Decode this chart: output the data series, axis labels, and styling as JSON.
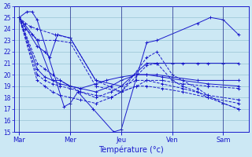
{
  "xlabel": "Température (°c)",
  "day_labels": [
    "Mar",
    "Mer",
    "Jeu",
    "Ven",
    "Sam"
  ],
  "ylim": [
    15,
    26
  ],
  "yticks": [
    15,
    16,
    17,
    18,
    19,
    20,
    21,
    22,
    23,
    24,
    25,
    26
  ],
  "bg_color": "#cce8f4",
  "line_color": "#1a1acc",
  "grid_color": "#88bbcc",
  "day_x": [
    0.0,
    1.0,
    2.0,
    3.0,
    4.0
  ],
  "x_max": 4.5,
  "x_min": -0.1,
  "lines": [
    {
      "y": [
        25.0,
        25.5,
        25.5,
        24.8,
        17.2,
        17.5,
        18.5,
        17.0,
        15.0,
        15.2,
        22.8,
        23.0,
        24.5,
        25.0,
        24.8,
        23.5
      ],
      "x": [
        0.0,
        0.15,
        0.25,
        0.35,
        0.88,
        1.0,
        1.15,
        1.45,
        1.85,
        2.0,
        2.5,
        2.7,
        3.5,
        3.75,
        4.0,
        4.3
      ],
      "dash": false
    },
    {
      "y": [
        25.0,
        22.5,
        22.0,
        21.5,
        23.5,
        23.2,
        19.5,
        19.0,
        21.0,
        21.0,
        21.0,
        21.0,
        21.0,
        21.0,
        21.0,
        21.0
      ],
      "x": [
        0.0,
        0.35,
        0.5,
        0.6,
        0.75,
        1.0,
        1.5,
        2.0,
        2.5,
        2.7,
        3.0,
        3.2,
        3.5,
        3.7,
        4.0,
        4.3
      ],
      "dash": false
    },
    {
      "y": [
        25.0,
        23.0,
        19.5,
        19.5,
        19.0,
        18.8,
        19.2,
        19.5,
        19.8,
        20.0,
        20.0,
        20.0,
        19.8,
        19.5,
        19.5,
        19.5
      ],
      "x": [
        0.0,
        0.35,
        0.65,
        0.8,
        1.0,
        1.2,
        1.5,
        1.7,
        2.0,
        2.3,
        2.5,
        2.7,
        3.0,
        3.5,
        4.0,
        4.3
      ],
      "dash": false
    },
    {
      "y": [
        25.0,
        20.5,
        19.8,
        19.5,
        19.2,
        19.0,
        18.8,
        18.5,
        19.0,
        19.5,
        20.0,
        20.0,
        19.8,
        19.5,
        19.2,
        19.0
      ],
      "x": [
        0.0,
        0.35,
        0.5,
        0.65,
        0.8,
        1.0,
        1.2,
        1.5,
        1.8,
        2.0,
        2.3,
        2.5,
        2.8,
        3.2,
        3.7,
        4.3
      ],
      "dash": false
    },
    {
      "y": [
        25.0,
        20.0,
        19.5,
        19.2,
        19.0,
        18.8,
        18.5,
        18.2,
        18.0,
        18.5,
        19.0,
        19.5,
        19.5,
        19.2,
        19.0,
        18.8
      ],
      "x": [
        0.0,
        0.35,
        0.5,
        0.65,
        0.8,
        1.0,
        1.2,
        1.5,
        1.8,
        2.0,
        2.3,
        2.5,
        2.8,
        3.2,
        3.7,
        4.3
      ],
      "dash": true
    },
    {
      "y": [
        25.0,
        24.0,
        23.5,
        23.0,
        23.0,
        22.8,
        19.0,
        18.5,
        20.8,
        21.0,
        19.5,
        19.0,
        18.5,
        18.0,
        17.5,
        17.0
      ],
      "x": [
        0.0,
        0.12,
        0.25,
        0.38,
        0.7,
        1.0,
        1.5,
        2.0,
        2.5,
        2.7,
        3.0,
        3.2,
        3.5,
        3.7,
        4.0,
        4.3
      ],
      "dash": true
    },
    {
      "y": [
        25.0,
        24.5,
        24.2,
        24.0,
        23.5,
        23.2,
        19.5,
        18.5,
        21.5,
        22.0,
        20.0,
        19.5,
        18.8,
        18.2,
        17.5,
        17.0
      ],
      "x": [
        0.0,
        0.12,
        0.22,
        0.35,
        0.7,
        1.0,
        1.5,
        2.0,
        2.5,
        2.7,
        3.0,
        3.2,
        3.5,
        3.7,
        4.0,
        4.3
      ],
      "dash": true
    },
    {
      "y": [
        25.0,
        21.0,
        20.5,
        20.0,
        19.5,
        19.0,
        18.5,
        18.0,
        18.5,
        19.0,
        19.5,
        19.5,
        19.2,
        18.8,
        18.2,
        17.8
      ],
      "x": [
        0.0,
        0.35,
        0.5,
        0.65,
        0.8,
        1.0,
        1.2,
        1.5,
        1.8,
        2.0,
        2.3,
        2.5,
        2.8,
        3.2,
        3.7,
        4.3
      ],
      "dash": true
    },
    {
      "y": [
        25.0,
        19.5,
        19.0,
        18.5,
        18.2,
        18.0,
        17.8,
        17.5,
        18.0,
        18.5,
        19.0,
        19.0,
        18.8,
        18.5,
        18.0,
        17.5
      ],
      "x": [
        0.0,
        0.35,
        0.5,
        0.65,
        0.8,
        1.0,
        1.2,
        1.5,
        1.8,
        2.0,
        2.3,
        2.5,
        2.8,
        3.2,
        3.7,
        4.3
      ],
      "dash": true
    }
  ]
}
